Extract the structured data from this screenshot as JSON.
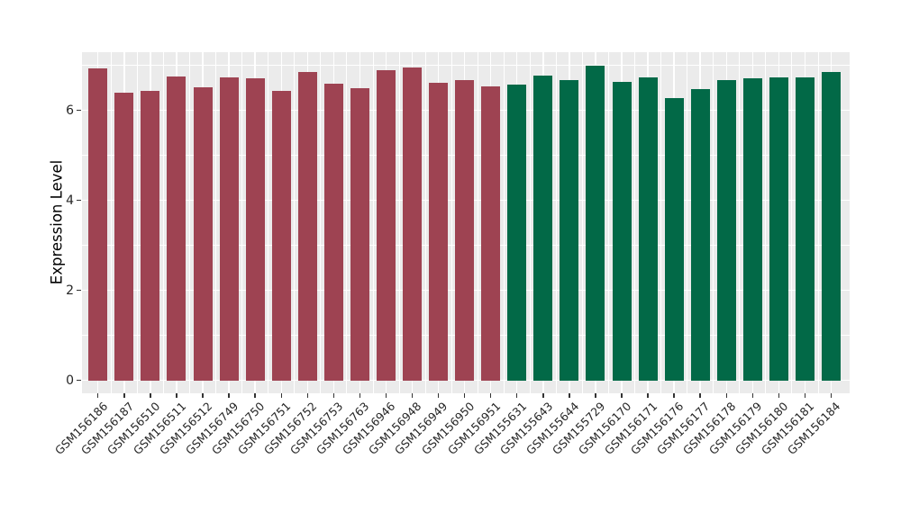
{
  "chart_data": {
    "type": "bar",
    "title": "",
    "xlabel": "",
    "ylabel": "Expression Level",
    "ylim": [
      -0.29,
      7.29
    ],
    "grid": true,
    "legend_position": "none",
    "panel_bg": "#EBEBEB",
    "gridline_color": "#ffffff",
    "y_axis": {
      "major_ticks": [
        0,
        2,
        4,
        6
      ],
      "minor_ticks": [
        1,
        3,
        5,
        7
      ]
    },
    "categories": [
      "GSM156186",
      "GSM156187",
      "GSM156510",
      "GSM156511",
      "GSM156512",
      "GSM156749",
      "GSM156750",
      "GSM156751",
      "GSM156752",
      "GSM156753",
      "GSM156763",
      "GSM156946",
      "GSM156948",
      "GSM156949",
      "GSM156950",
      "GSM156951",
      "GSM155631",
      "GSM155643",
      "GSM155644",
      "GSM155729",
      "GSM156170",
      "GSM156171",
      "GSM156176",
      "GSM156177",
      "GSM156178",
      "GSM156179",
      "GSM156180",
      "GSM156181",
      "GSM156184"
    ],
    "values": [
      6.93,
      6.4,
      6.44,
      6.76,
      6.51,
      6.74,
      6.71,
      6.43,
      6.86,
      6.6,
      6.5,
      6.89,
      6.95,
      6.62,
      6.67,
      6.54,
      6.57,
      6.77,
      6.67,
      6.99,
      6.63,
      6.73,
      6.28,
      6.47,
      6.67,
      6.71,
      6.74,
      6.73,
      6.86
    ],
    "bar_groups": [
      0,
      0,
      0,
      0,
      0,
      0,
      0,
      0,
      0,
      0,
      0,
      0,
      0,
      0,
      0,
      0,
      1,
      1,
      1,
      1,
      1,
      1,
      1,
      1,
      1,
      1,
      1,
      1,
      1
    ],
    "group_colors": [
      "#9E4352",
      "#026947"
    ],
    "tick_color": "#333333",
    "axis_text_color": "#262626"
  }
}
